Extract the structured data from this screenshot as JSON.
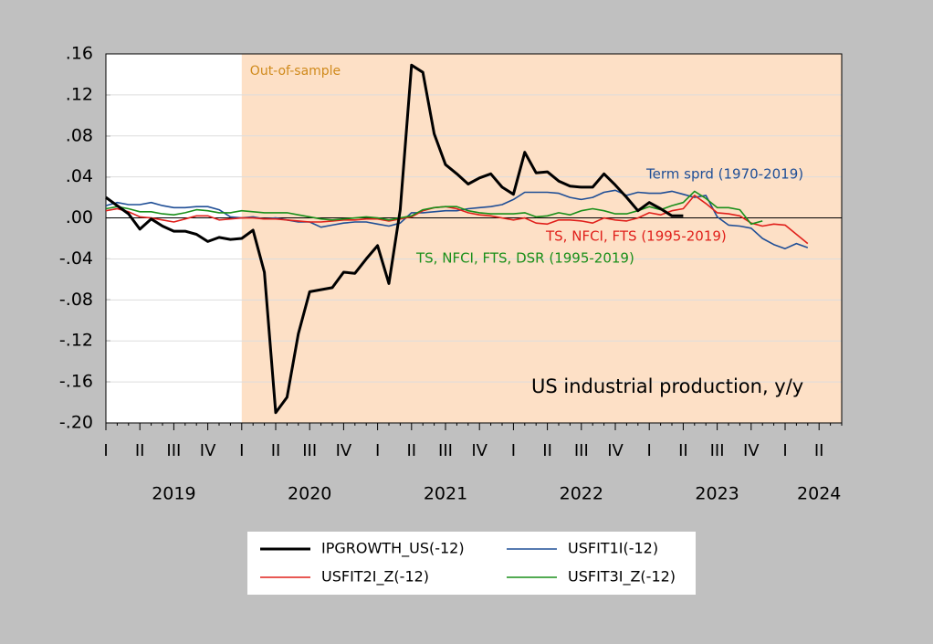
{
  "chart_data": {
    "type": "line",
    "categories": [
      "I",
      null,
      null,
      "II",
      null,
      null,
      "III",
      null,
      null,
      "IV",
      null,
      null,
      "I",
      null,
      null,
      "II",
      null,
      null,
      "III",
      null,
      null,
      "IV",
      null,
      null,
      "I",
      null,
      null,
      "II",
      null,
      null,
      "III",
      null,
      null,
      "IV",
      null,
      null,
      "I",
      null,
      null,
      "II",
      null,
      null,
      "III",
      null,
      null,
      "IV",
      null,
      null,
      "I",
      null,
      null,
      "II",
      null,
      null,
      "III",
      null,
      null,
      "IV",
      null,
      null,
      "I",
      null,
      null,
      "II",
      null,
      null
    ],
    "years": [
      "2019",
      "2020",
      "2021",
      "2022",
      "2023",
      "2024"
    ],
    "ylim": [
      -0.2,
      0.16
    ],
    "yticks": [
      {
        "value": 0.16,
        "label": ".16"
      },
      {
        "value": 0.12,
        "label": ".12"
      },
      {
        "value": 0.08,
        "label": ".08"
      },
      {
        "value": 0.04,
        "label": ".04"
      },
      {
        "value": 0,
        "label": ".00"
      },
      {
        "value": -0.04,
        "label": "-.04"
      },
      {
        "value": -0.08,
        "label": "-.08"
      },
      {
        "value": -0.12,
        "label": "-.12"
      },
      {
        "value": -0.16,
        "label": "-.16"
      },
      {
        "value": -0.2,
        "label": "-.20"
      }
    ],
    "grid": true,
    "shade": {
      "label": "Out-of-sample",
      "start": 12,
      "color": "#fde0c6"
    },
    "series": [
      {
        "name": "IPGROWTH_US(-12)",
        "color": "#000000",
        "width": 3,
        "values": [
          0.02,
          0.012,
          0.004,
          -0.011,
          -0.001,
          -0.008,
          -0.013,
          -0.013,
          -0.016,
          -0.023,
          -0.019,
          -0.021,
          -0.02,
          -0.012,
          -0.053,
          -0.19,
          -0.175,
          -0.113,
          -0.072,
          -0.07,
          -0.068,
          -0.053,
          -0.054,
          -0.04,
          -0.027,
          -0.064,
          0.008,
          0.149,
          0.142,
          0.082,
          0.052,
          0.043,
          0.033,
          0.039,
          0.043,
          0.03,
          0.023,
          0.064,
          0.044,
          0.045,
          0.036,
          0.031,
          0.03,
          0.03,
          0.043,
          0.032,
          0.02,
          0.007,
          0.015,
          0.009,
          0.002,
          0.002,
          null,
          null,
          null,
          null,
          null,
          null,
          null,
          null,
          null,
          null,
          null,
          null,
          null,
          null
        ]
      },
      {
        "name": "USFIT1I(-12)",
        "color": "#1f4e96",
        "width": 1.6,
        "values": [
          0.012,
          0.015,
          0.013,
          0.013,
          0.015,
          0.012,
          0.01,
          0.01,
          0.011,
          0.011,
          0.008,
          0.001,
          0.0,
          0.001,
          -0.001,
          0.0,
          -0.002,
          -0.004,
          -0.004,
          -0.009,
          -0.007,
          -0.005,
          -0.004,
          -0.004,
          -0.006,
          -0.008,
          -0.005,
          0.005,
          0.005,
          0.006,
          0.007,
          0.007,
          0.009,
          0.01,
          0.011,
          0.013,
          0.018,
          0.025,
          0.025,
          0.025,
          0.024,
          0.02,
          0.018,
          0.02,
          0.025,
          0.027,
          0.022,
          0.025,
          0.024,
          0.024,
          0.026,
          0.023,
          0.02,
          0.022,
          0.001,
          -0.007,
          -0.008,
          -0.01,
          -0.02,
          -0.026,
          -0.03,
          -0.025,
          -0.029,
          null,
          null,
          null
        ]
      },
      {
        "name": "USFIT2I_Z(-12)",
        "color": "#e0201b",
        "width": 1.6,
        "values": [
          0.007,
          0.009,
          0.006,
          0.001,
          0.0,
          -0.002,
          -0.004,
          -0.001,
          0.002,
          0.002,
          -0.002,
          -0.001,
          0.0,
          0.0,
          -0.001,
          -0.001,
          -0.002,
          -0.003,
          -0.004,
          -0.004,
          -0.003,
          -0.002,
          -0.002,
          -0.001,
          -0.001,
          -0.003,
          -0.001,
          0.001,
          0.007,
          0.01,
          0.011,
          0.009,
          0.005,
          0.003,
          0.002,
          0.0,
          -0.002,
          0.0,
          -0.005,
          -0.006,
          -0.002,
          -0.002,
          -0.003,
          -0.005,
          0.0,
          -0.002,
          -0.003,
          0.0,
          0.005,
          0.003,
          0.007,
          0.009,
          0.022,
          0.014,
          0.005,
          0.004,
          0.002,
          -0.005,
          -0.008,
          -0.006,
          -0.007,
          -0.016,
          -0.025,
          null,
          null,
          null
        ]
      },
      {
        "name": "USFIT3I_Z(-12)",
        "color": "#1a8f1a",
        "width": 1.6,
        "values": [
          0.009,
          0.011,
          0.009,
          0.006,
          0.006,
          0.004,
          0.003,
          0.005,
          0.008,
          0.007,
          0.005,
          0.005,
          0.007,
          0.006,
          0.005,
          0.005,
          0.005,
          0.003,
          0.001,
          -0.001,
          -0.002,
          -0.001,
          0.0,
          0.001,
          0.0,
          -0.002,
          0.0,
          0.002,
          0.008,
          0.01,
          0.011,
          0.011,
          0.007,
          0.005,
          0.004,
          0.004,
          0.004,
          0.005,
          0.001,
          0.002,
          0.005,
          0.003,
          0.007,
          0.009,
          0.007,
          0.004,
          0.004,
          0.007,
          0.011,
          0.008,
          0.012,
          0.015,
          0.026,
          0.019,
          0.01,
          0.01,
          0.008,
          -0.006,
          -0.003,
          null,
          null,
          null,
          null,
          null,
          null,
          null
        ]
      }
    ],
    "annotations": [
      {
        "text": "Term sprd (1970-2019)",
        "color": "#1f4e96",
        "series": 1
      },
      {
        "text": "TS, NFCI, FTS (1995-2019)",
        "color": "#e0201b",
        "series": 2
      },
      {
        "text": "TS, NFCI, FTS, DSR (1995-2019)",
        "color": "#1a8f1a",
        "series": 3
      },
      {
        "text": "US industrial production, y/y",
        "color": "#000000"
      }
    ]
  }
}
